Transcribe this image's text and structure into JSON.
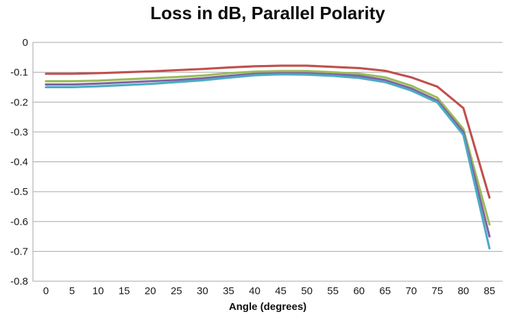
{
  "window": {
    "background_color": "#FFFFFF",
    "text_color": "#0D0D0D",
    "gridline_color": "#A6A6A6",
    "axis_line_color": "#A6A6A6"
  },
  "chart_data": {
    "type": "line",
    "title": "Loss in dB, Parallel Polarity",
    "xlabel": "Angle (degrees)",
    "ylabel": "",
    "x": [
      0,
      5,
      10,
      15,
      20,
      25,
      30,
      35,
      40,
      45,
      50,
      55,
      60,
      65,
      70,
      75,
      80,
      85
    ],
    "x_tick_labels": [
      "0",
      "5",
      "10",
      "15",
      "20",
      "25",
      "30",
      "35",
      "40",
      "45",
      "50",
      "55",
      "60",
      "65",
      "70",
      "75",
      "80",
      "85"
    ],
    "y_ticks": [
      0,
      -0.1,
      -0.2,
      -0.3,
      -0.4,
      -0.5,
      -0.6,
      -0.7,
      -0.8
    ],
    "y_tick_labels": [
      "0",
      "-0.1",
      "-0.2",
      "-0.3",
      "-0.4",
      "-0.5",
      "-0.6",
      "-0.7",
      "-0.8"
    ],
    "ylim": [
      -0.8,
      0
    ],
    "grid": "horizontal",
    "legend": "none",
    "series": [
      {
        "name": "series-1-red",
        "color": "#C0504D",
        "values": [
          -0.105,
          -0.105,
          -0.103,
          -0.1,
          -0.097,
          -0.093,
          -0.089,
          -0.084,
          -0.08,
          -0.078,
          -0.078,
          -0.082,
          -0.086,
          -0.095,
          -0.117,
          -0.148,
          -0.22,
          -0.52
        ]
      },
      {
        "name": "series-2-green",
        "color": "#9BBB59",
        "values": [
          -0.13,
          -0.13,
          -0.128,
          -0.124,
          -0.12,
          -0.116,
          -0.111,
          -0.103,
          -0.098,
          -0.096,
          -0.096,
          -0.1,
          -0.105,
          -0.117,
          -0.145,
          -0.185,
          -0.29,
          -0.61
        ]
      },
      {
        "name": "series-3-purple",
        "color": "#8064A2",
        "values": [
          -0.141,
          -0.141,
          -0.138,
          -0.134,
          -0.13,
          -0.126,
          -0.12,
          -0.112,
          -0.105,
          -0.103,
          -0.103,
          -0.107,
          -0.112,
          -0.126,
          -0.154,
          -0.195,
          -0.3,
          -0.65
        ]
      },
      {
        "name": "series-4-blue",
        "color": "#4BACC6",
        "values": [
          -0.15,
          -0.15,
          -0.147,
          -0.143,
          -0.139,
          -0.133,
          -0.127,
          -0.118,
          -0.11,
          -0.107,
          -0.108,
          -0.112,
          -0.119,
          -0.133,
          -0.161,
          -0.201,
          -0.31,
          -0.69
        ]
      }
    ]
  }
}
